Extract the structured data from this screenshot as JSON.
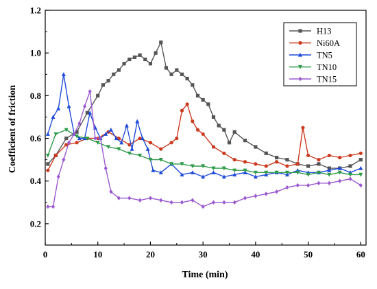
{
  "chart_data": {
    "type": "line",
    "title": "",
    "xlabel": "Time (min)",
    "ylabel": "Coefficient of friction",
    "xlim": [
      0,
      61
    ],
    "ylim": [
      0.1,
      1.2
    ],
    "xticks": [
      0,
      10,
      20,
      30,
      40,
      50,
      60
    ],
    "yticks": [
      0.2,
      0.4,
      0.6,
      0.8,
      1.0,
      1.2
    ],
    "xtick_labels": [
      "0",
      "10",
      "20",
      "30",
      "40",
      "50",
      "60"
    ],
    "ytick_labels": [
      "0.2",
      "0.4",
      "0.6",
      "0.8",
      "1.0",
      "1.2"
    ],
    "grid": false,
    "legend_position": "top-right",
    "series": [
      {
        "name": "H13",
        "color": "#555555",
        "marker": "square",
        "x": [
          0.5,
          2,
          4,
          6,
          8,
          10,
          11,
          12,
          13,
          14,
          15,
          16,
          17,
          18,
          19,
          20,
          21,
          22,
          23,
          24,
          25,
          26,
          27,
          28,
          29,
          30,
          31,
          32,
          33,
          34,
          35,
          36,
          38,
          40,
          42,
          44,
          46,
          48,
          50,
          52,
          54,
          56,
          58,
          60
        ],
        "values": [
          0.48,
          0.52,
          0.6,
          0.63,
          0.72,
          0.8,
          0.85,
          0.87,
          0.9,
          0.92,
          0.95,
          0.97,
          0.98,
          0.99,
          0.97,
          0.95,
          1.0,
          1.05,
          0.93,
          0.9,
          0.92,
          0.9,
          0.88,
          0.85,
          0.8,
          0.78,
          0.76,
          0.7,
          0.66,
          0.64,
          0.58,
          0.63,
          0.59,
          0.56,
          0.53,
          0.51,
          0.5,
          0.48,
          0.47,
          0.48,
          0.46,
          0.46,
          0.47,
          0.5
        ]
      },
      {
        "name": "Ni60A",
        "color": "#cc3a1f",
        "marker": "circle",
        "x": [
          0.5,
          2,
          4,
          6,
          8,
          10,
          12,
          14,
          16,
          18,
          20,
          22,
          24,
          25,
          26,
          27,
          28,
          29,
          30,
          32,
          34,
          36,
          38,
          40,
          42,
          44,
          46,
          48,
          49,
          50,
          52,
          54,
          56,
          58,
          60
        ],
        "values": [
          0.45,
          0.52,
          0.57,
          0.58,
          0.6,
          0.6,
          0.63,
          0.6,
          0.57,
          0.6,
          0.58,
          0.55,
          0.58,
          0.6,
          0.73,
          0.76,
          0.68,
          0.64,
          0.62,
          0.56,
          0.53,
          0.5,
          0.49,
          0.48,
          0.47,
          0.49,
          0.47,
          0.48,
          0.65,
          0.52,
          0.5,
          0.52,
          0.51,
          0.52,
          0.53
        ]
      },
      {
        "name": "TN5",
        "color": "#1f4bd8",
        "marker": "triangle-up",
        "x": [
          0.5,
          1.5,
          2.5,
          3.5,
          4.5,
          5.5,
          6.5,
          7.5,
          8.5,
          9.5,
          10.5,
          11.5,
          12.5,
          13.5,
          14.5,
          15.5,
          16.5,
          17.5,
          18.5,
          19.5,
          20.5,
          22,
          24,
          26,
          28,
          30,
          32,
          34,
          36,
          38,
          40,
          42,
          44,
          46,
          48,
          50,
          52,
          54,
          56,
          58,
          60
        ],
        "values": [
          0.62,
          0.7,
          0.74,
          0.9,
          0.75,
          0.62,
          0.6,
          0.6,
          0.72,
          0.65,
          0.6,
          0.62,
          0.64,
          0.6,
          0.58,
          0.66,
          0.55,
          0.68,
          0.6,
          0.55,
          0.45,
          0.44,
          0.48,
          0.43,
          0.44,
          0.42,
          0.44,
          0.42,
          0.43,
          0.44,
          0.42,
          0.43,
          0.44,
          0.43,
          0.45,
          0.44,
          0.44,
          0.45,
          0.46,
          0.44,
          0.46
        ]
      },
      {
        "name": "TN10",
        "color": "#2e9a4a",
        "marker": "triangle-down",
        "x": [
          0.5,
          2,
          4,
          6,
          8,
          10,
          12,
          14,
          16,
          18,
          20,
          22,
          24,
          26,
          28,
          30,
          32,
          34,
          36,
          38,
          40,
          42,
          44,
          46,
          48,
          50,
          52,
          54,
          56,
          58,
          60
        ],
        "values": [
          0.52,
          0.62,
          0.64,
          0.61,
          0.6,
          0.58,
          0.56,
          0.55,
          0.53,
          0.52,
          0.5,
          0.5,
          0.48,
          0.48,
          0.47,
          0.47,
          0.46,
          0.46,
          0.45,
          0.45,
          0.44,
          0.44,
          0.44,
          0.44,
          0.44,
          0.43,
          0.44,
          0.43,
          0.44,
          0.43,
          0.43
        ]
      },
      {
        "name": "TN15",
        "color": "#9b59d0",
        "marker": "diamond",
        "x": [
          0.5,
          1.5,
          2.5,
          3.5,
          4.5,
          5.5,
          6.5,
          7.5,
          8.5,
          9.5,
          10.5,
          11.5,
          12.5,
          14,
          16,
          18,
          20,
          22,
          24,
          26,
          28,
          30,
          32,
          34,
          36,
          38,
          40,
          42,
          44,
          46,
          48,
          50,
          52,
          54,
          56,
          58,
          60
        ],
        "values": [
          0.28,
          0.28,
          0.42,
          0.5,
          0.58,
          0.62,
          0.67,
          0.75,
          0.82,
          0.6,
          0.6,
          0.46,
          0.35,
          0.32,
          0.32,
          0.31,
          0.32,
          0.31,
          0.3,
          0.3,
          0.31,
          0.28,
          0.3,
          0.3,
          0.3,
          0.32,
          0.33,
          0.34,
          0.35,
          0.37,
          0.38,
          0.38,
          0.39,
          0.39,
          0.4,
          0.41,
          0.38
        ]
      }
    ]
  }
}
